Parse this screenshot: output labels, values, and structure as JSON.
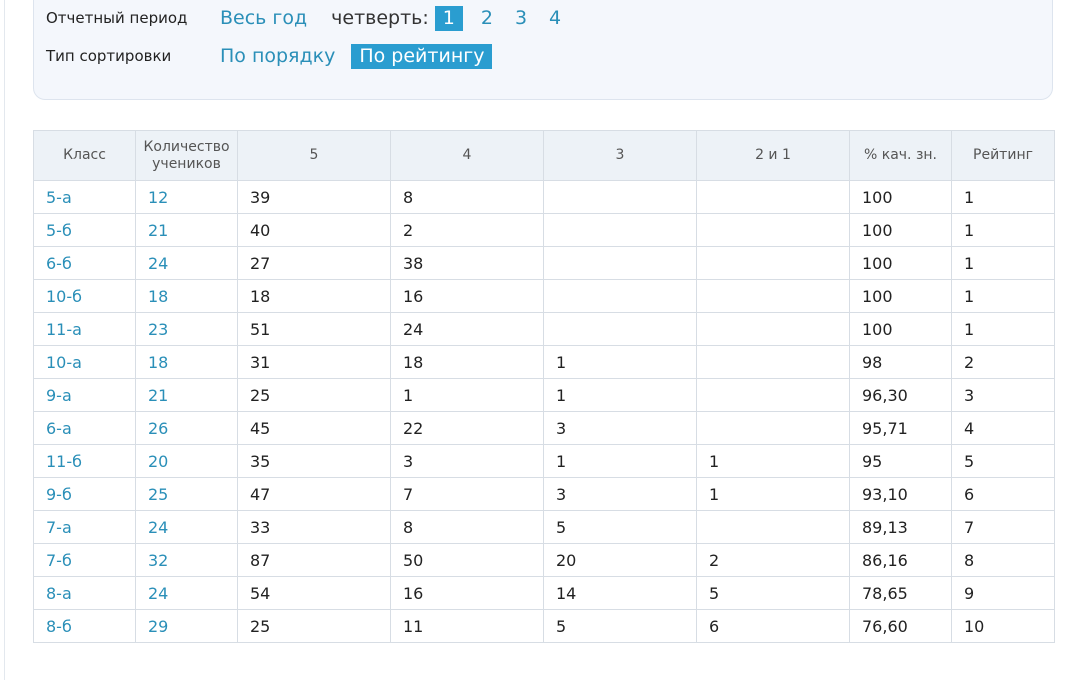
{
  "filters": {
    "period_label": "Отчетный период",
    "whole_year": "Весь год",
    "quarter_label": "четверть:",
    "quarters": [
      "1",
      "2",
      "3",
      "4"
    ],
    "active_quarter": "1",
    "sort_label": "Тип сортировки",
    "sort_by_order": "По порядку",
    "sort_by_rating": "По рейтингу",
    "active_sort": "По рейтингу"
  },
  "table": {
    "headers": [
      "Класс",
      "Количество учеников",
      "5",
      "4",
      "3",
      "2 и 1",
      "% кач. зн.",
      "Рейтинг"
    ],
    "rows": [
      [
        "5-а",
        "12",
        "39",
        "8",
        "",
        "",
        "100",
        "1"
      ],
      [
        "5-б",
        "21",
        "40",
        "2",
        "",
        "",
        "100",
        "1"
      ],
      [
        "6-б",
        "24",
        "27",
        "38",
        "",
        "",
        "100",
        "1"
      ],
      [
        "10-б",
        "18",
        "18",
        "16",
        "",
        "",
        "100",
        "1"
      ],
      [
        "11-а",
        "23",
        "51",
        "24",
        "",
        "",
        "100",
        "1"
      ],
      [
        "10-а",
        "18",
        "31",
        "18",
        "1",
        "",
        "98",
        "2"
      ],
      [
        "9-а",
        "21",
        "25",
        "1",
        "1",
        "",
        "96,30",
        "3"
      ],
      [
        "6-а",
        "26",
        "45",
        "22",
        "3",
        "",
        "95,71",
        "4"
      ],
      [
        "11-б",
        "20",
        "35",
        "3",
        "1",
        "1",
        "95",
        "5"
      ],
      [
        "9-б",
        "25",
        "47",
        "7",
        "3",
        "1",
        "93,10",
        "6"
      ],
      [
        "7-а",
        "24",
        "33",
        "8",
        "5",
        "",
        "89,13",
        "7"
      ],
      [
        "7-б",
        "32",
        "87",
        "50",
        "20",
        "2",
        "86,16",
        "8"
      ],
      [
        "8-а",
        "24",
        "54",
        "16",
        "14",
        "5",
        "78,65",
        "9"
      ],
      [
        "8-б",
        "29",
        "25",
        "11",
        "5",
        "6",
        "76,60",
        "10"
      ]
    ]
  },
  "colors": {
    "link": "#2a8fb8",
    "active_bg": "#2a9dd0",
    "header_bg": "#edf2f7",
    "panel_bg": "#f4f7fc"
  }
}
